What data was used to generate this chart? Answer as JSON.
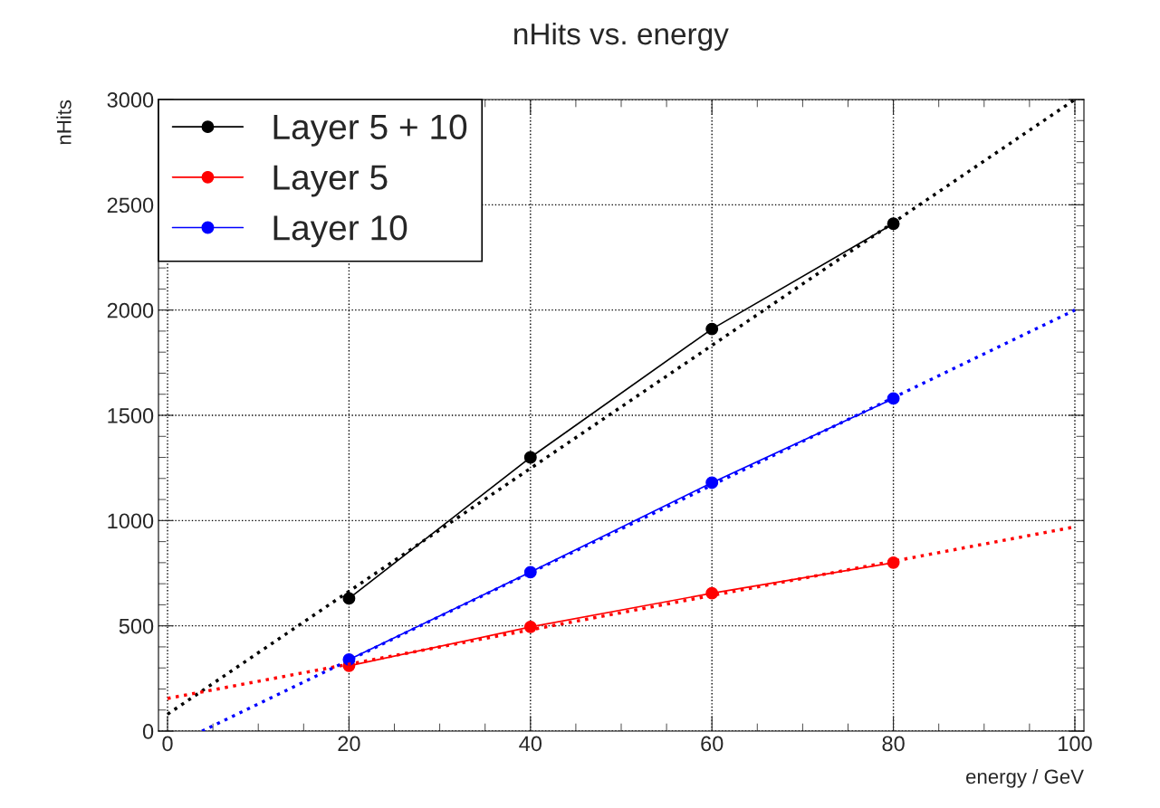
{
  "chart_data": {
    "type": "line",
    "title": "nHits vs. energy",
    "xlabel": "energy / GeV",
    "ylabel": "nHits",
    "xlim": [
      -1,
      101
    ],
    "ylim": [
      0,
      3000
    ],
    "xticks": [
      0,
      20,
      40,
      60,
      80,
      100
    ],
    "yticks": [
      0,
      500,
      1000,
      1500,
      2000,
      2500,
      3000
    ],
    "grid": true,
    "legend": "top left",
    "marker": "circle",
    "series": [
      {
        "name": "Layer 5 + 10",
        "color": "#000000",
        "x": [
          20,
          40,
          60,
          80
        ],
        "values": [
          630,
          1300,
          1910,
          2410
        ]
      },
      {
        "name": "Layer 5",
        "color": "#ff0000",
        "x": [
          20,
          40,
          60,
          80
        ],
        "values": [
          310,
          495,
          655,
          800
        ]
      },
      {
        "name": "Layer 10",
        "color": "#0000ff",
        "x": [
          20,
          40,
          60,
          80
        ],
        "values": [
          340,
          755,
          1180,
          1580
        ]
      },
      {
        "color": "#000000",
        "x": [
          0,
          100
        ],
        "values": [
          80,
          3000
        ],
        "marker": "none",
        "line_style": "dotted"
      },
      {
        "color": "#ff0000",
        "x": [
          0,
          100
        ],
        "values": [
          155,
          970
        ],
        "marker": "none",
        "line_style": "dotted"
      },
      {
        "color": "#0000ff",
        "x": [
          3.8,
          100
        ],
        "values": [
          0,
          2000
        ],
        "marker": "none",
        "line_style": "dotted"
      }
    ]
  }
}
